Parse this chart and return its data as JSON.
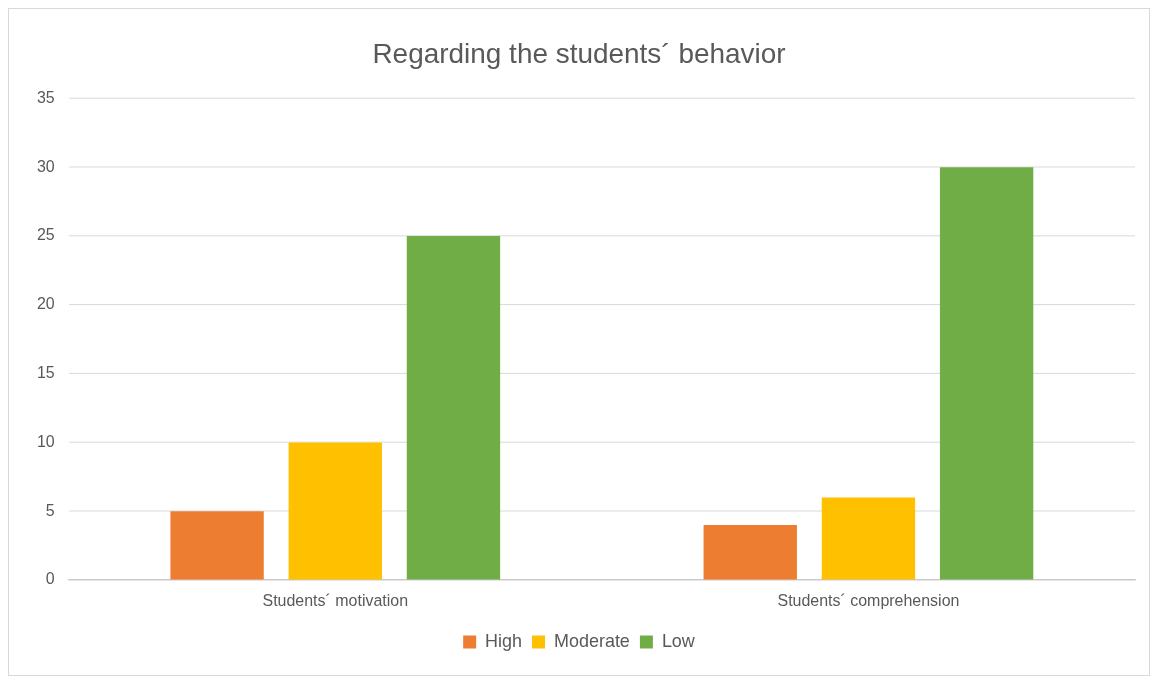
{
  "chart_data": {
    "type": "bar",
    "title": "Regarding the students´ behavior",
    "categories": [
      "Students´ motivation",
      "Students´ comprehension"
    ],
    "series": [
      {
        "name": "High",
        "color": "#ed7d31",
        "values": [
          5,
          4
        ]
      },
      {
        "name": "Moderate",
        "color": "#ffc000",
        "values": [
          10,
          6
        ]
      },
      {
        "name": "Low",
        "color": "#70ad47",
        "values": [
          25,
          30
        ]
      }
    ],
    "ylim": [
      0,
      35
    ],
    "yticks": [
      0,
      5,
      10,
      15,
      20,
      25,
      30,
      35
    ],
    "grid": "y",
    "legend": "bottom"
  }
}
